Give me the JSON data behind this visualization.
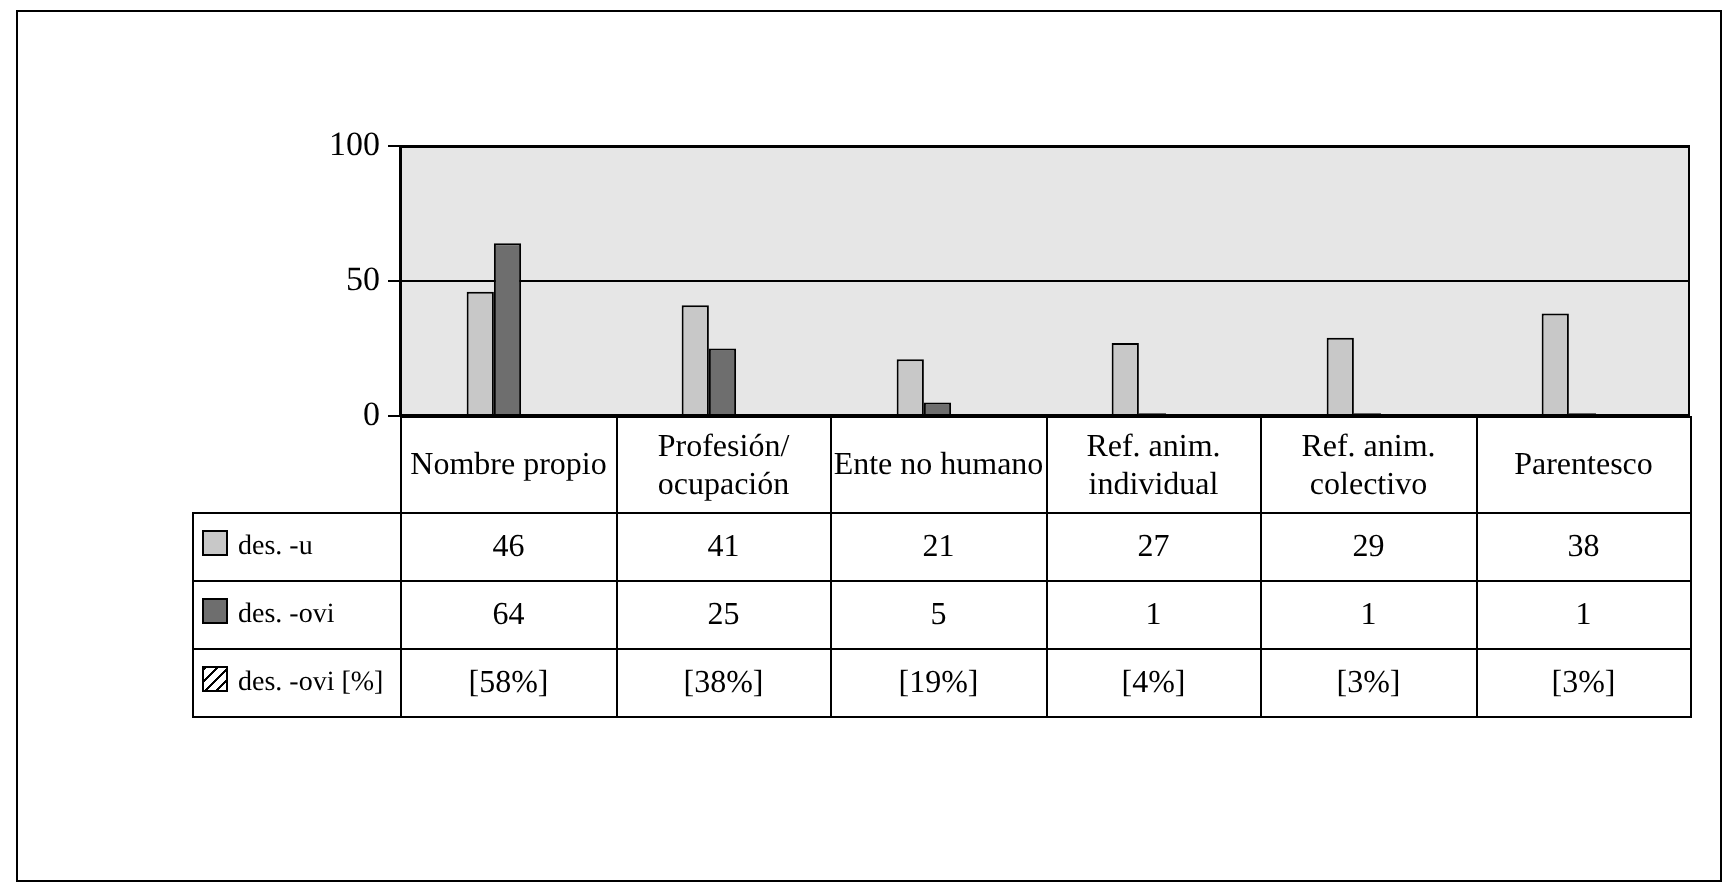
{
  "chart_data": {
    "type": "bar",
    "categories": [
      "Nombre propio",
      "Profesión/ ocupación",
      "Ente no humano",
      "Ref. anim. individual",
      "Ref. anim. colectivo",
      "Parentesco"
    ],
    "series": [
      {
        "name": "des. -u",
        "color": "#c8c8c8",
        "values": [
          46,
          41,
          21,
          27,
          29,
          38
        ]
      },
      {
        "name": "des. -ovi",
        "color": "#6e6e6e",
        "values": [
          64,
          25,
          5,
          1,
          1,
          1
        ]
      },
      {
        "name": "des. -ovi [%]",
        "values": [
          null,
          null,
          null,
          null,
          null,
          null
        ],
        "value_labels": [
          "[58%]",
          "[38%]",
          "[19%]",
          "[4%]",
          "[3%]",
          "[3%]"
        ]
      }
    ],
    "ylim": [
      0,
      100
    ],
    "yticks": [
      0,
      50,
      100
    ],
    "grid": "y",
    "legend": "bottom left",
    "data_labels": true
  }
}
